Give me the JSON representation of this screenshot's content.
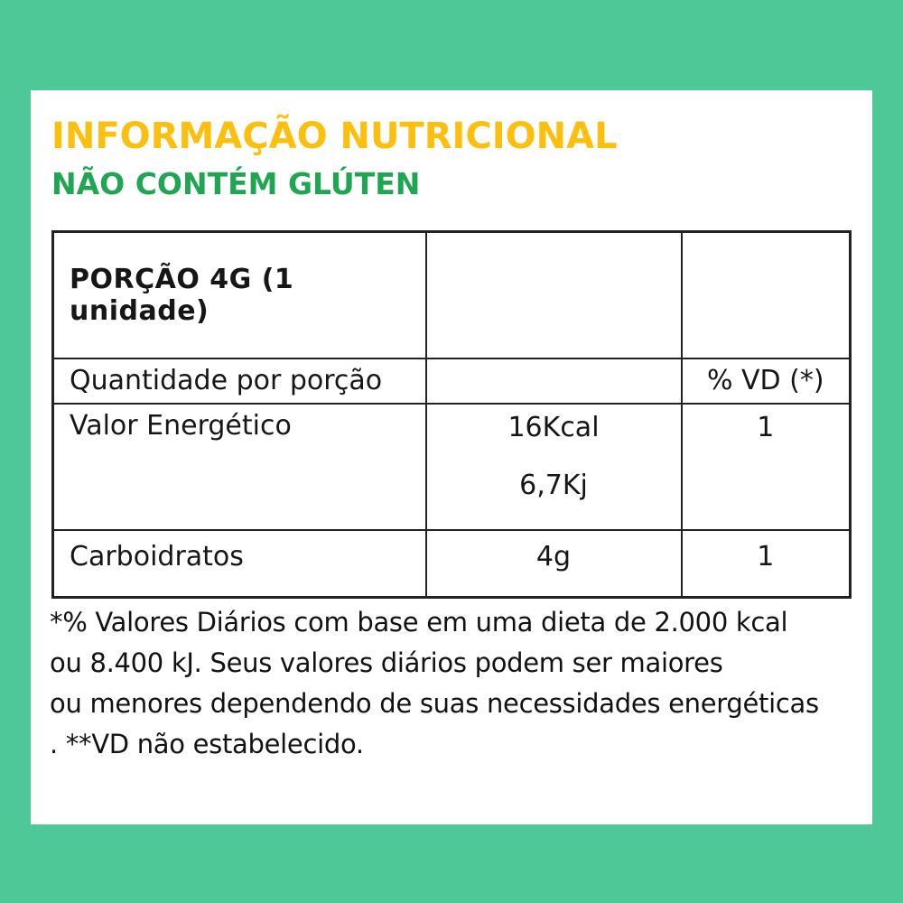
{
  "colors": {
    "background": "#4ec897",
    "card": "#ffffff",
    "title": "#fcbf0d",
    "subtitle": "#1fa651",
    "table_border": "#222222",
    "text": "#161616"
  },
  "header": {
    "title": "INFORMAÇÃO NUTRICIONAL",
    "subtitle": "NÃO CONTÉM GLÚTEN"
  },
  "table": {
    "serving_header": "PORÇÃO 4G (1 unidade)",
    "columns": {
      "quantity": "Quantidade por porção",
      "vd": "% VD (*)"
    },
    "rows": [
      {
        "nutrient": "Valor Energético",
        "amount_lines": [
          "16Kcal",
          "6,7Kj"
        ],
        "vd": "1"
      },
      {
        "nutrient": "Carboidratos",
        "amount_lines": [
          "4g"
        ],
        "vd": "1"
      }
    ]
  },
  "footnote": {
    "lines": [
      "*% Valores Diários com base em uma dieta de 2.000 kcal",
      "ou 8.400 kJ. Seus valores diários podem ser maiores",
      "ou menores dependendo de suas necessidades energéticas",
      ". **VD não estabelecido."
    ]
  }
}
